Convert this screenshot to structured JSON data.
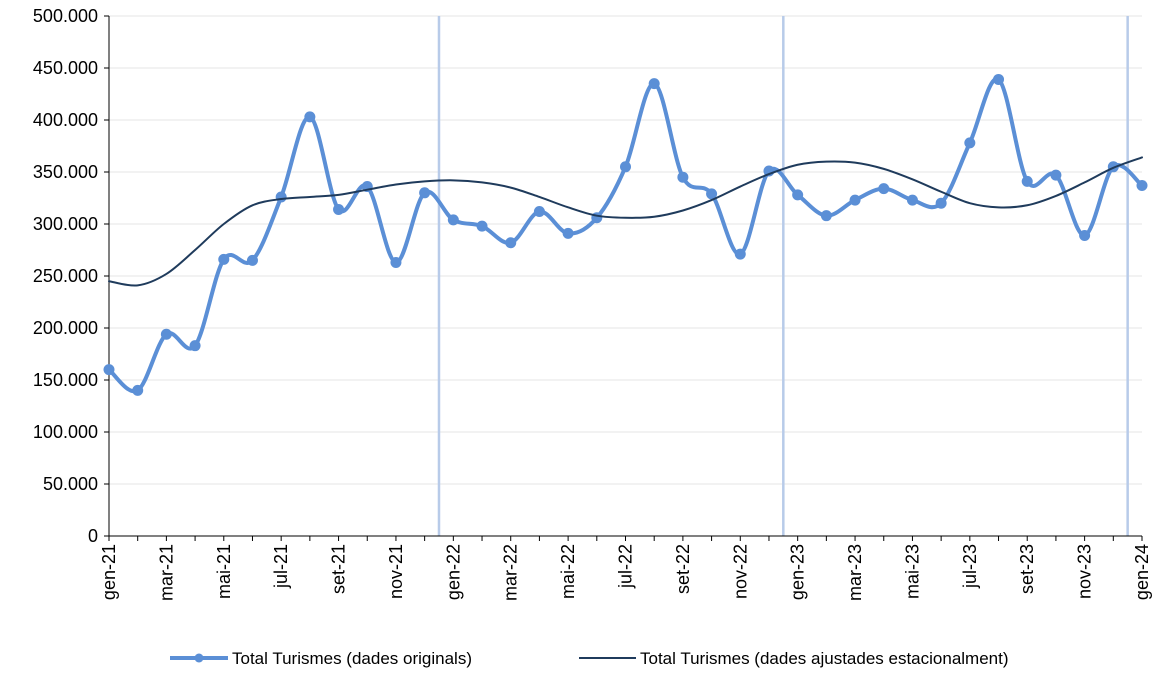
{
  "chart_data": {
    "type": "line",
    "title": "",
    "xlabel": "",
    "ylabel": "",
    "ylim": [
      0,
      500000
    ],
    "y_ticks": [
      "0",
      "50.000",
      "100.000",
      "150.000",
      "200.000",
      "250.000",
      "300.000",
      "350.000",
      "400.000",
      "450.000",
      "500.000"
    ],
    "x": [
      "gen-21",
      "feb-21",
      "mar-21",
      "abr-21",
      "mai-21",
      "jun-21",
      "jul-21",
      "ago-21",
      "set-21",
      "oct-21",
      "nov-21",
      "des-21",
      "gen-22",
      "feb-22",
      "mar-22",
      "abr-22",
      "mai-22",
      "jun-22",
      "jul-22",
      "ago-22",
      "set-22",
      "oct-22",
      "nov-22",
      "des-22",
      "gen-23",
      "feb-23",
      "mar-23",
      "abr-23",
      "mai-23",
      "jun-23",
      "jul-23",
      "ago-23",
      "set-23",
      "oct-23",
      "nov-23",
      "des-23",
      "gen-24"
    ],
    "x_tick_labels": [
      "gen-21",
      "mar-21",
      "mai-21",
      "jul-21",
      "set-21",
      "nov-21",
      "gen-22",
      "mar-22",
      "mai-22",
      "jul-22",
      "set-22",
      "nov-22",
      "gen-23",
      "mar-23",
      "mai-23",
      "jul-23",
      "set-23",
      "nov-23",
      "gen-24"
    ],
    "year_separators_after": [
      "des-21",
      "des-22",
      "des-23"
    ],
    "grid": true,
    "legend_position": "bottom",
    "series": [
      {
        "name": "Total Turismes (dades originals)",
        "color": "#5B8FD6",
        "markers": true,
        "values": [
          160000,
          140000,
          194000,
          183000,
          266000,
          265000,
          326000,
          403000,
          314000,
          336000,
          263000,
          330000,
          304000,
          298000,
          282000,
          312000,
          291000,
          306000,
          355000,
          435000,
          345000,
          329000,
          271000,
          351000,
          328000,
          308000,
          323000,
          334000,
          323000,
          320000,
          378000,
          439000,
          341000,
          347000,
          289000,
          355000,
          337000
        ]
      },
      {
        "name": "Total Turismes (dades ajustades estacionalment)",
        "color": "#1F3B5C",
        "markers": false,
        "values": [
          245000,
          241000,
          252000,
          275000,
          300000,
          318000,
          324000,
          326000,
          328000,
          333000,
          338000,
          341000,
          342000,
          340000,
          335000,
          326000,
          316000,
          308000,
          306000,
          307000,
          313000,
          323000,
          336000,
          348000,
          357000,
          360000,
          359000,
          353000,
          343000,
          331000,
          320000,
          316000,
          318000,
          327000,
          340000,
          354000,
          364000
        ]
      }
    ]
  }
}
